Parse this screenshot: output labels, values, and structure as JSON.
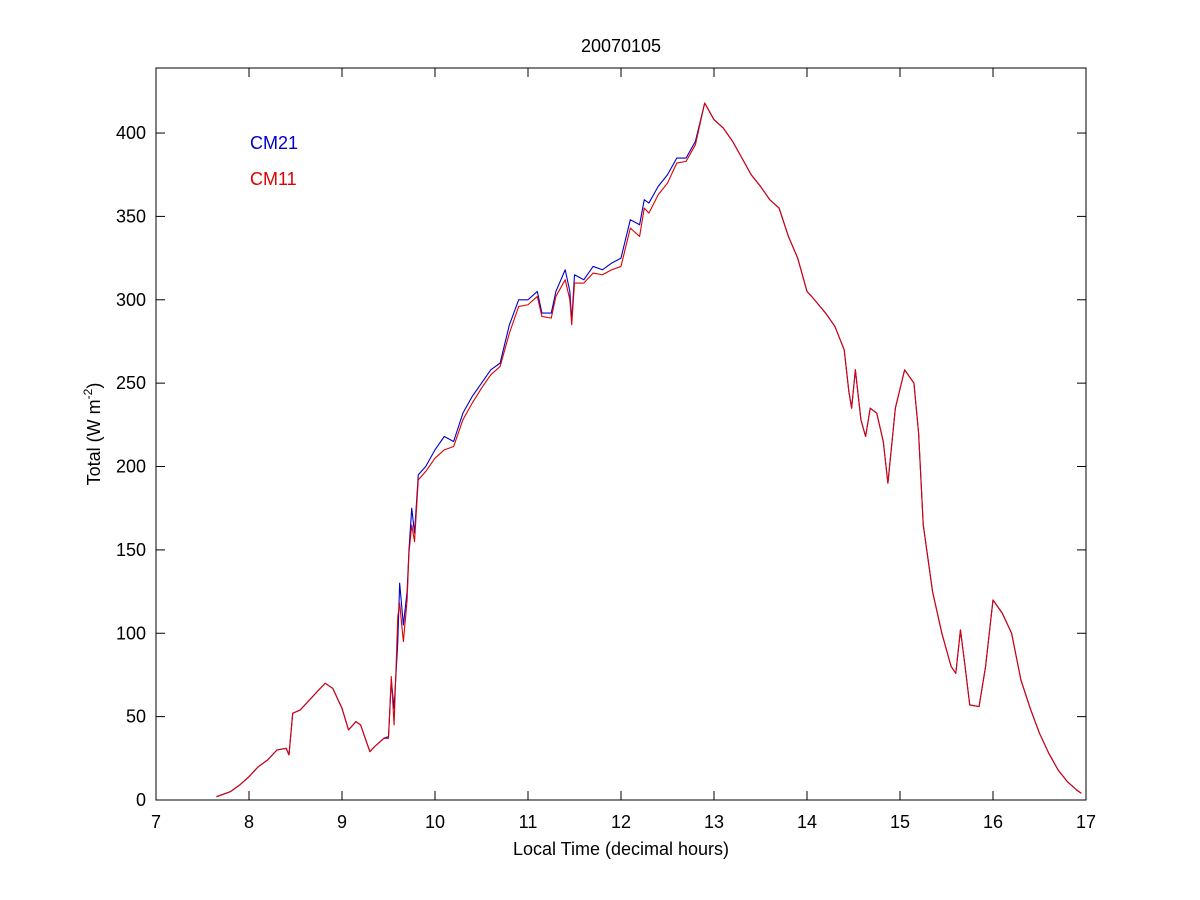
{
  "chart_data": {
    "type": "line",
    "title": "20070105",
    "xlabel": "Local Time (decimal hours)",
    "ylabel": {
      "text": "Total (W m",
      "superscript": "-2",
      "suffix": ")"
    },
    "xlim": [
      7,
      17
    ],
    "xticks": [
      7,
      8,
      9,
      10,
      11,
      12,
      13,
      14,
      15,
      16,
      17
    ],
    "ylim": [
      0,
      439
    ],
    "yticks": [
      0,
      50,
      100,
      150,
      200,
      250,
      300,
      350,
      400
    ],
    "grid": false,
    "legend": "upper left",
    "x": [
      7.65,
      7.8,
      7.9,
      8.0,
      8.1,
      8.2,
      8.3,
      8.4,
      8.43,
      8.47,
      8.55,
      8.65,
      8.75,
      8.82,
      8.9,
      9.0,
      9.07,
      9.15,
      9.2,
      9.3,
      9.35,
      9.45,
      9.5,
      9.53,
      9.56,
      9.6,
      9.62,
      9.66,
      9.7,
      9.72,
      9.75,
      9.78,
      9.82,
      9.9,
      10.0,
      10.1,
      10.2,
      10.3,
      10.4,
      10.5,
      10.6,
      10.7,
      10.8,
      10.9,
      11.0,
      11.1,
      11.15,
      11.25,
      11.3,
      11.4,
      11.45,
      11.47,
      11.5,
      11.6,
      11.7,
      11.8,
      11.9,
      12.0,
      12.1,
      12.2,
      12.25,
      12.3,
      12.4,
      12.5,
      12.6,
      12.7,
      12.8,
      12.9,
      13.0,
      13.1,
      13.2,
      13.3,
      13.4,
      13.5,
      13.6,
      13.7,
      13.8,
      13.9,
      14.0,
      14.05,
      14.2,
      14.3,
      14.4,
      14.45,
      14.48,
      14.52,
      14.58,
      14.63,
      14.68,
      14.75,
      14.82,
      14.87,
      14.95,
      15.05,
      15.15,
      15.2,
      15.25,
      15.35,
      15.45,
      15.55,
      15.6,
      15.65,
      15.7,
      15.75,
      15.85,
      15.92,
      16.0,
      16.1,
      16.2,
      16.3,
      16.4,
      16.5,
      16.6,
      16.7,
      16.8,
      16.9,
      16.95
    ],
    "series": [
      {
        "name": "CM21",
        "color": "#0000cc",
        "values": [
          2,
          5,
          9,
          14,
          20,
          24,
          30,
          31,
          27,
          52,
          54,
          60,
          66,
          70,
          67,
          55,
          42,
          47,
          45,
          29,
          32,
          37,
          38,
          72,
          55,
          95,
          130,
          105,
          125,
          150,
          175,
          160,
          195,
          200,
          210,
          218,
          215,
          232,
          242,
          250,
          258,
          262,
          285,
          300,
          300,
          305,
          292,
          292,
          305,
          318,
          305,
          287,
          315,
          312,
          320,
          318,
          322,
          325,
          348,
          345,
          360,
          358,
          368,
          375,
          385,
          385,
          395,
          418,
          408,
          403,
          395,
          385,
          375,
          368,
          360,
          355,
          338,
          325,
          305,
          302,
          292,
          284,
          270,
          245,
          235,
          258,
          228,
          218,
          235,
          232,
          215,
          190,
          235,
          258,
          250,
          220,
          165,
          125,
          100,
          80,
          76,
          102,
          80,
          57,
          56,
          80,
          120,
          112,
          100,
          72,
          55,
          40,
          28,
          18,
          11,
          6,
          4
        ]
      },
      {
        "name": "CM11",
        "color": "#dd0000",
        "values": [
          2,
          5,
          9,
          14,
          20,
          24,
          30,
          31,
          27,
          52,
          54,
          60,
          66,
          70,
          67,
          55,
          42,
          47,
          45,
          29,
          32,
          37,
          37,
          74,
          45,
          110,
          118,
          95,
          120,
          148,
          165,
          155,
          192,
          197,
          205,
          210,
          212,
          228,
          238,
          247,
          255,
          260,
          280,
          296,
          297,
          302,
          290,
          289,
          302,
          312,
          300,
          285,
          310,
          310,
          316,
          315,
          318,
          320,
          343,
          338,
          355,
          352,
          363,
          370,
          382,
          383,
          393,
          418,
          408,
          403,
          395,
          385,
          375,
          368,
          360,
          355,
          338,
          325,
          305,
          302,
          292,
          284,
          270,
          245,
          235,
          258,
          228,
          218,
          235,
          232,
          215,
          190,
          235,
          258,
          250,
          220,
          165,
          125,
          100,
          80,
          76,
          102,
          80,
          57,
          56,
          80,
          120,
          112,
          100,
          72,
          55,
          40,
          28,
          18,
          11,
          6,
          4
        ]
      }
    ]
  }
}
